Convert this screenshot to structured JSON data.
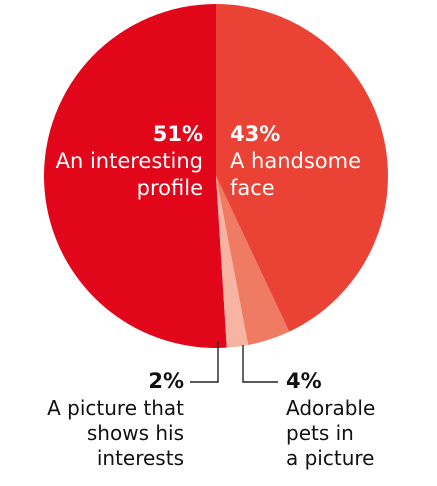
{
  "chart_data": {
    "type": "pie",
    "title": "",
    "start_angle_deg": 0,
    "direction": "counterclockwise",
    "slices": [
      {
        "label_pct": "51%",
        "label_lines": [
          "An interesting",
          "profile"
        ],
        "value": 51,
        "color": "#e2061b",
        "label_position": "inside-left"
      },
      {
        "label_pct": "2%",
        "label_lines": [
          "A picture that",
          "shows his",
          "interests"
        ],
        "value": 2,
        "color": "#f7b4a3",
        "label_position": "outside-bottom-left"
      },
      {
        "label_pct": "4%",
        "label_lines": [
          "Adorable",
          "pets in",
          "a picture"
        ],
        "value": 4,
        "color": "#ee7b62",
        "label_position": "outside-bottom-right"
      },
      {
        "label_pct": "43%",
        "label_lines": [
          "A handsome",
          "face"
        ],
        "value": 43,
        "color": "#ea4335",
        "label_position": "inside-right"
      }
    ]
  }
}
